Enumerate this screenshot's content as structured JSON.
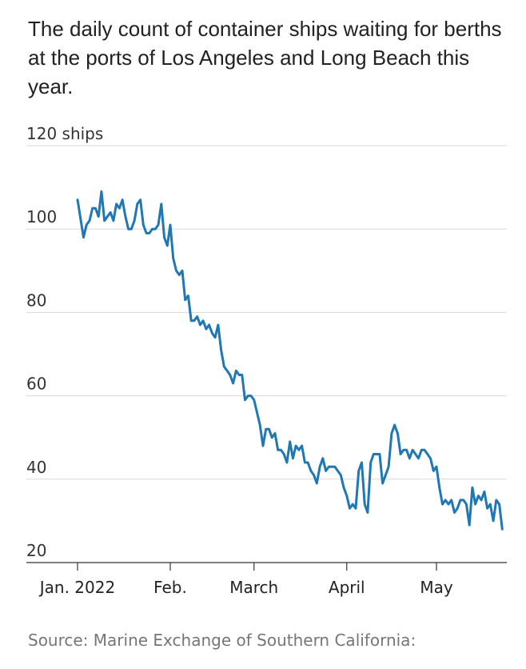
{
  "title": "The daily count of container ships waiting for berths at the ports of Los Angeles and Long Beach this year.",
  "source": "Source: Marine Exchange of Southern California:",
  "chart_data": {
    "type": "line",
    "title": "The daily count of container ships waiting for berths at the ports of Los Angeles and Long Beach this year.",
    "xlabel": "",
    "ylabel": "",
    "ylim": [
      20,
      120
    ],
    "y_ticks": [
      20,
      40,
      60,
      80,
      100,
      120
    ],
    "y_tick_labels": [
      "20",
      "40",
      "60",
      "80",
      "100",
      "120 ships"
    ],
    "x_ticks": [
      "Jan. 2022",
      "Feb.",
      "March",
      "April",
      "May"
    ],
    "x_tick_dates": [
      "2022-01-01",
      "2022-02-01",
      "2022-03-01",
      "2022-04-01",
      "2022-05-01"
    ],
    "grid": true,
    "line_color": "#1f77b4",
    "series": [
      {
        "values": [
          [
            "2022-01-01",
            107
          ],
          [
            "2022-01-03",
            98
          ],
          [
            "2022-01-04",
            101
          ],
          [
            "2022-01-05",
            102
          ],
          [
            "2022-01-06",
            105
          ],
          [
            "2022-01-07",
            105
          ],
          [
            "2022-01-08",
            103
          ],
          [
            "2022-01-09",
            109
          ],
          [
            "2022-01-10",
            102
          ],
          [
            "2022-01-11",
            103
          ],
          [
            "2022-01-12",
            104
          ],
          [
            "2022-01-13",
            102
          ],
          [
            "2022-01-14",
            106
          ],
          [
            "2022-01-15",
            105
          ],
          [
            "2022-01-16",
            107
          ],
          [
            "2022-01-17",
            103
          ],
          [
            "2022-01-18",
            100
          ],
          [
            "2022-01-19",
            100
          ],
          [
            "2022-01-20",
            102
          ],
          [
            "2022-01-21",
            106
          ],
          [
            "2022-01-22",
            107
          ],
          [
            "2022-01-23",
            101
          ],
          [
            "2022-01-24",
            99
          ],
          [
            "2022-01-25",
            99
          ],
          [
            "2022-01-26",
            100
          ],
          [
            "2022-01-27",
            100
          ],
          [
            "2022-01-28",
            101
          ],
          [
            "2022-01-29",
            106
          ],
          [
            "2022-01-30",
            98
          ],
          [
            "2022-01-31",
            96
          ],
          [
            "2022-02-01",
            101
          ],
          [
            "2022-02-02",
            93
          ],
          [
            "2022-02-03",
            90
          ],
          [
            "2022-02-04",
            89
          ],
          [
            "2022-02-05",
            90
          ],
          [
            "2022-02-06",
            83
          ],
          [
            "2022-02-07",
            84
          ],
          [
            "2022-02-08",
            78
          ],
          [
            "2022-02-09",
            78
          ],
          [
            "2022-02-10",
            79
          ],
          [
            "2022-02-11",
            77
          ],
          [
            "2022-02-12",
            78
          ],
          [
            "2022-02-13",
            76
          ],
          [
            "2022-02-14",
            77
          ],
          [
            "2022-02-15",
            75
          ],
          [
            "2022-02-16",
            74
          ],
          [
            "2022-02-17",
            77
          ],
          [
            "2022-02-18",
            71
          ],
          [
            "2022-02-19",
            67
          ],
          [
            "2022-02-20",
            66
          ],
          [
            "2022-02-21",
            65
          ],
          [
            "2022-02-22",
            63
          ],
          [
            "2022-02-23",
            66
          ],
          [
            "2022-02-24",
            65
          ],
          [
            "2022-02-25",
            65
          ],
          [
            "2022-02-26",
            59
          ],
          [
            "2022-02-27",
            60
          ],
          [
            "2022-02-28",
            60
          ],
          [
            "2022-03-01",
            59
          ],
          [
            "2022-03-02",
            56
          ],
          [
            "2022-03-03",
            53
          ],
          [
            "2022-03-04",
            48
          ],
          [
            "2022-03-05",
            52
          ],
          [
            "2022-03-06",
            52
          ],
          [
            "2022-03-07",
            50
          ],
          [
            "2022-03-08",
            51
          ],
          [
            "2022-03-09",
            47
          ],
          [
            "2022-03-10",
            47
          ],
          [
            "2022-03-11",
            46
          ],
          [
            "2022-03-12",
            44
          ],
          [
            "2022-03-13",
            49
          ],
          [
            "2022-03-14",
            45
          ],
          [
            "2022-03-15",
            48
          ],
          [
            "2022-03-16",
            47
          ],
          [
            "2022-03-17",
            48
          ],
          [
            "2022-03-18",
            44
          ],
          [
            "2022-03-19",
            44
          ],
          [
            "2022-03-20",
            42
          ],
          [
            "2022-03-21",
            41
          ],
          [
            "2022-03-22",
            39
          ],
          [
            "2022-03-23",
            43
          ],
          [
            "2022-03-24",
            45
          ],
          [
            "2022-03-25",
            42
          ],
          [
            "2022-03-26",
            43
          ],
          [
            "2022-03-27",
            43
          ],
          [
            "2022-03-28",
            43
          ],
          [
            "2022-03-29",
            42
          ],
          [
            "2022-03-30",
            41
          ],
          [
            "2022-03-31",
            38
          ],
          [
            "2022-04-01",
            36
          ],
          [
            "2022-04-02",
            33
          ],
          [
            "2022-04-03",
            34
          ],
          [
            "2022-04-04",
            33
          ],
          [
            "2022-04-05",
            42
          ],
          [
            "2022-04-06",
            44
          ],
          [
            "2022-04-07",
            34
          ],
          [
            "2022-04-08",
            32
          ],
          [
            "2022-04-09",
            44
          ],
          [
            "2022-04-10",
            46
          ],
          [
            "2022-04-11",
            46
          ],
          [
            "2022-04-12",
            46
          ],
          [
            "2022-04-13",
            39
          ],
          [
            "2022-04-14",
            41
          ],
          [
            "2022-04-15",
            43
          ],
          [
            "2022-04-16",
            51
          ],
          [
            "2022-04-17",
            53
          ],
          [
            "2022-04-18",
            51
          ],
          [
            "2022-04-19",
            46
          ],
          [
            "2022-04-20",
            47
          ],
          [
            "2022-04-21",
            47
          ],
          [
            "2022-04-22",
            45
          ],
          [
            "2022-04-23",
            47
          ],
          [
            "2022-04-24",
            46
          ],
          [
            "2022-04-25",
            45
          ],
          [
            "2022-04-26",
            47
          ],
          [
            "2022-04-27",
            47
          ],
          [
            "2022-04-28",
            46
          ],
          [
            "2022-04-29",
            45
          ],
          [
            "2022-04-30",
            42
          ],
          [
            "2022-05-01",
            43
          ],
          [
            "2022-05-02",
            38
          ],
          [
            "2022-05-03",
            34
          ],
          [
            "2022-05-04",
            35
          ],
          [
            "2022-05-05",
            34
          ],
          [
            "2022-05-06",
            35
          ],
          [
            "2022-05-07",
            32
          ],
          [
            "2022-05-08",
            33
          ],
          [
            "2022-05-09",
            35
          ],
          [
            "2022-05-10",
            35
          ],
          [
            "2022-05-11",
            34
          ],
          [
            "2022-05-12",
            29
          ],
          [
            "2022-05-13",
            38
          ],
          [
            "2022-05-14",
            34
          ],
          [
            "2022-05-15",
            36
          ],
          [
            "2022-05-16",
            35
          ],
          [
            "2022-05-17",
            37
          ],
          [
            "2022-05-18",
            33
          ],
          [
            "2022-05-19",
            34
          ],
          [
            "2022-05-20",
            30
          ],
          [
            "2022-05-21",
            35
          ],
          [
            "2022-05-22",
            34
          ],
          [
            "2022-05-23",
            28
          ]
        ]
      }
    ]
  }
}
